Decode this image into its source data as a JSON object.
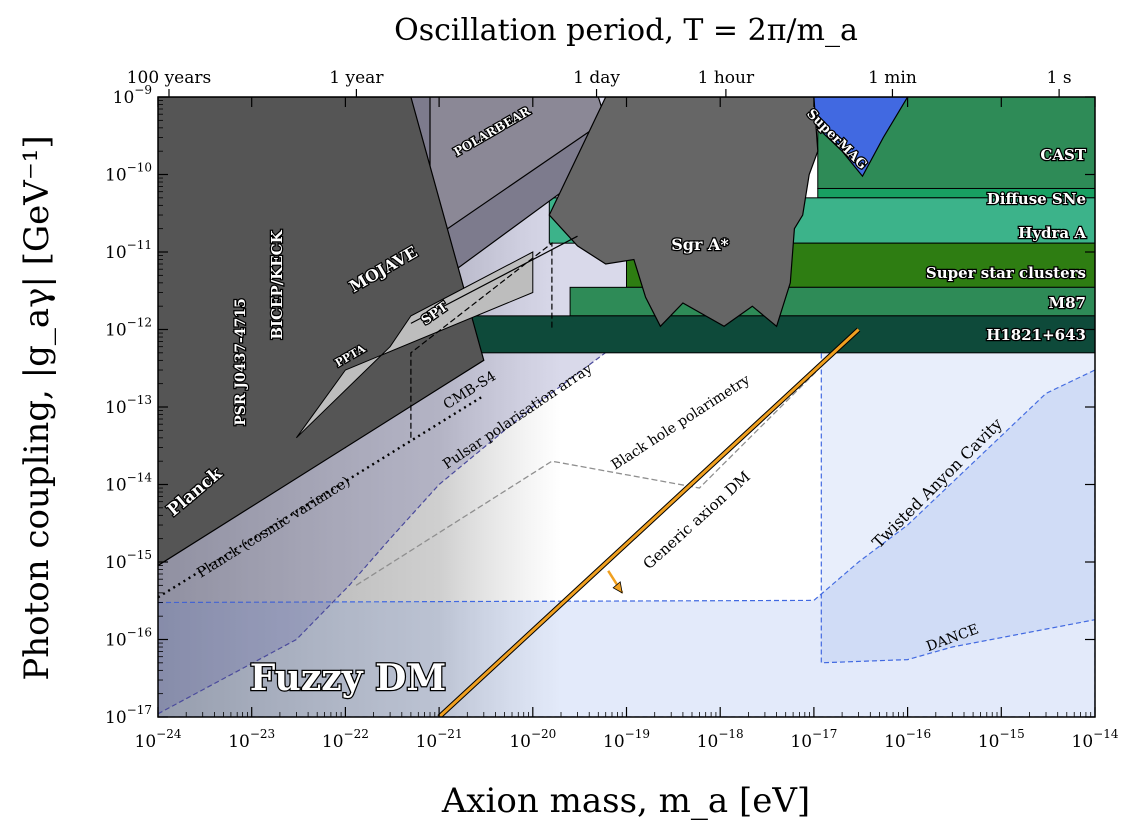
{
  "chart_data": {
    "type": "area",
    "xlabel": "Axion mass, m_a [eV]",
    "ylabel": "Photon coupling, |g_aγ| [GeV⁻¹]",
    "top_axis_title": "Oscillation period, T = 2π/m_a",
    "xscale": "log",
    "yscale": "log",
    "xlim": [
      1e-24,
      1e-14
    ],
    "ylim": [
      1e-17,
      1e-09
    ],
    "x_ticks": [
      {
        "base": "10",
        "exp": "−24",
        "value": 1e-24
      },
      {
        "base": "10",
        "exp": "−23",
        "value": 1e-23
      },
      {
        "base": "10",
        "exp": "−22",
        "value": 1e-22
      },
      {
        "base": "10",
        "exp": "−21",
        "value": 1e-21
      },
      {
        "base": "10",
        "exp": "−20",
        "value": 1e-20
      },
      {
        "base": "10",
        "exp": "−19",
        "value": 1e-19
      },
      {
        "base": "10",
        "exp": "−18",
        "value": 1e-18
      },
      {
        "base": "10",
        "exp": "−17",
        "value": 1e-17
      },
      {
        "base": "10",
        "exp": "−16",
        "value": 1e-16
      },
      {
        "base": "10",
        "exp": "−15",
        "value": 1e-15
      },
      {
        "base": "10",
        "exp": "−14",
        "value": 1e-14
      }
    ],
    "y_ticks": [
      {
        "base": "10",
        "exp": "−9",
        "value": 1e-09
      },
      {
        "base": "10",
        "exp": "−10",
        "value": 1e-10
      },
      {
        "base": "10",
        "exp": "−11",
        "value": 1e-11
      },
      {
        "base": "10",
        "exp": "−12",
        "value": 1e-12
      },
      {
        "base": "10",
        "exp": "−13",
        "value": 1e-13
      },
      {
        "base": "10",
        "exp": "−14",
        "value": 1e-14
      },
      {
        "base": "10",
        "exp": "−15",
        "value": 1e-15
      },
      {
        "base": "10",
        "exp": "−16",
        "value": 1e-16
      },
      {
        "base": "10",
        "exp": "−17",
        "value": 1e-17
      }
    ],
    "top_ticks": [
      {
        "label": "100 years",
        "mass_eV": 1.31e-24
      },
      {
        "label": "1 year",
        "mass_eV": 1.31e-22
      },
      {
        "label": "1 day",
        "mass_eV": 4.79e-20
      },
      {
        "label": "1 hour",
        "mass_eV": 1.15e-18
      },
      {
        "label": "1 min",
        "mass_eV": 6.89e-17
      },
      {
        "label": "1 s",
        "mass_eV": 4.14e-15
      }
    ],
    "constraints": [
      {
        "label": "CAST",
        "type": "band",
        "x": [
          1.1e-17,
          1e-14
        ],
        "y": [
          6.6e-11,
          1e-09
        ],
        "color": "#2e8b57"
      },
      {
        "label": "Diffuse SNe",
        "type": "band",
        "x": [
          1.1e-17,
          1e-14
        ],
        "y": [
          5e-11,
          6.6e-11
        ],
        "color": "#18a062"
      },
      {
        "label": "Hydra A",
        "type": "band",
        "x": [
          1.5e-20,
          1e-14
        ],
        "y": [
          1.3e-11,
          5e-11
        ],
        "color": "#3cb38a"
      },
      {
        "label": "Super star clusters",
        "type": "band",
        "x": [
          1e-19,
          1e-14
        ],
        "y": [
          3.5e-12,
          1.3e-11
        ],
        "color": "#2e7d12"
      },
      {
        "label": "M87",
        "type": "band",
        "x": [
          2.5e-20,
          1e-14
        ],
        "y": [
          1.5e-12,
          3.5e-12
        ],
        "color": "#2e8b57"
      },
      {
        "label": "H1821+643",
        "type": "band",
        "x": [
          5e-22,
          1e-14
        ],
        "y": [
          5e-13,
          1.5e-12
        ],
        "color": "#0e4a3a"
      },
      {
        "label": "SuperMAG",
        "type": "region",
        "color": "#4169e1",
        "points": [
          [
            3.5e-18,
            1e-09
          ],
          [
            9e-18,
            5e-10
          ],
          [
            2e-17,
            2e-10
          ],
          [
            3.3e-17,
            9.5e-11
          ],
          [
            5.5e-17,
            3e-10
          ],
          [
            1e-16,
            1e-09
          ]
        ]
      },
      {
        "label": "Sgr A*",
        "type": "region",
        "color": "#666666",
        "points": [
          [
            6e-20,
            1e-09
          ],
          [
            1.5e-20,
            3e-11
          ],
          [
            3e-20,
            1.2e-11
          ],
          [
            6e-20,
            7e-12
          ],
          [
            1.2e-19,
            8e-12
          ],
          [
            1.6e-19,
            2.6e-12
          ],
          [
            2.3e-19,
            1.1e-12
          ],
          [
            4e-19,
            2.2e-12
          ],
          [
            1.1e-18,
            1.1e-12
          ],
          [
            2.2e-18,
            2e-12
          ],
          [
            4e-18,
            1.1e-12
          ],
          [
            5.6e-18,
            4e-12
          ],
          [
            6.2e-18,
            2e-11
          ],
          [
            7.6e-18,
            3e-11
          ],
          [
            8.9e-18,
            1e-10
          ],
          [
            1.1e-17,
            2e-10
          ],
          [
            1e-17,
            1e-09
          ]
        ]
      },
      {
        "label": "Planck",
        "type": "region",
        "color": "#555555",
        "points": [
          [
            1e-24,
            1e-09
          ],
          [
            1e-24,
            9e-16
          ],
          [
            3e-21,
            4e-13
          ],
          [
            5e-22,
            1e-09
          ]
        ]
      },
      {
        "label": "PSR J0437-4715",
        "type": "region",
        "color": "#a0a0a0",
        "points": [
          [
            5.5e-24,
            1e-09
          ],
          [
            5.5e-24,
            1.5e-14
          ],
          [
            1e-22,
            3e-14
          ],
          [
            1e-22,
            1e-09
          ]
        ]
      },
      {
        "label": "BICEP/KECK",
        "type": "region",
        "color": "#676782",
        "points": [
          [
            1.2e-23,
            1e-09
          ],
          [
            1.2e-23,
            2.2e-12
          ],
          [
            2.7e-23,
            2.2e-12
          ],
          [
            2.7e-23,
            3e-14
          ],
          [
            4.5e-23,
            1e-13
          ],
          [
            2e-22,
            8e-13
          ],
          [
            1e-22,
            1e-09
          ]
        ]
      },
      {
        "label": "MOJAVE",
        "type": "region",
        "color": "#7d7b8d",
        "points": [
          [
            3.5e-23,
            1e-09
          ],
          [
            3.5e-23,
            1e-12
          ],
          [
            7e-22,
            3e-12
          ],
          [
            8e-20,
            2e-10
          ],
          [
            1e-20,
            1e-09
          ]
        ]
      },
      {
        "label": "POLARBEAR",
        "type": "region",
        "color": "#8b8896",
        "points": [
          [
            8e-22,
            1e-09
          ],
          [
            8e-22,
            1.4e-11
          ],
          [
            6e-20,
            5e-10
          ],
          [
            5e-20,
            1e-09
          ]
        ]
      },
      {
        "label": "PPTA",
        "type": "region",
        "color": "#bdbdbd",
        "points": [
          [
            3e-23,
            4e-14
          ],
          [
            3e-22,
            6e-13
          ],
          [
            5e-22,
            1.5e-12
          ],
          [
            1.5e-21,
            3e-12
          ],
          [
            1e-20,
            1e-11
          ]
        ]
      },
      {
        "label": "SPT",
        "type": "region",
        "color": "#7a7885",
        "points": [
          [
            5e-22,
            1.2e-12
          ],
          [
            3e-20,
            1.6e-11
          ]
        ]
      },
      {
        "label": "Fuzzy DM",
        "type": "region",
        "color": "#7d7d7d",
        "x": [
          1e-24,
          2e-20
        ],
        "y": [
          1e-17,
          1e-09
        ]
      }
    ],
    "projections": [
      {
        "label": "Planck (cosmic variance)",
        "style": "dotted",
        "color": "#000000",
        "points": [
          [
            1e-24,
            3.5e-16
          ],
          [
            3e-21,
            1.4e-13
          ]
        ]
      },
      {
        "label": "CMB-S4",
        "style": "dashed",
        "color": "#000000",
        "points": [
          [
            5e-22,
            4e-14
          ],
          [
            5e-22,
            5e-13
          ],
          [
            1.6e-20,
            1.3e-11
          ],
          [
            1.6e-20,
            1e-12
          ]
        ]
      },
      {
        "label": "Pulsar polarisation array",
        "style": "dashed",
        "color": "#4a4a9c",
        "points": [
          [
            1e-24,
            1.1e-17
          ],
          [
            3e-23,
            1e-16
          ],
          [
            1.1e-22,
            5e-16
          ],
          [
            3e-22,
            2e-15
          ],
          [
            1e-21,
            1e-14
          ],
          [
            1e-20,
            1e-13
          ],
          [
            1e-19,
            8e-13
          ],
          [
            3e-19,
            1e-12
          ]
        ]
      },
      {
        "label": "Black hole polarimetry",
        "style": "dashed",
        "color": "#8f8f8f",
        "points": [
          [
            1.3e-22,
            5e-16
          ],
          [
            1.6e-20,
            2e-14
          ],
          [
            6e-19,
            9e-15
          ],
          [
            1.1e-17,
            3e-13
          ]
        ]
      },
      {
        "label": "Twisted Anyon Cavity",
        "style": "dashed",
        "color": "#4169e1",
        "points": [
          [
            1e-24,
            3e-16
          ],
          [
            1e-17,
            3.2e-16
          ],
          [
            3e-17,
            1e-15
          ],
          [
            1e-16,
            3e-15
          ],
          [
            3e-15,
            1.5e-13
          ],
          [
            1e-14,
            3e-13
          ],
          [
            1e-14,
            1e-17
          ],
          [
            1e-24,
            1e-17
          ]
        ]
      },
      {
        "label": "DANCE",
        "style": "dashed",
        "color": "#4169e1",
        "points": [
          [
            1.2e-17,
            1e-12
          ],
          [
            1.2e-17,
            5e-17
          ],
          [
            1e-16,
            5.5e-17
          ],
          [
            3e-16,
            8e-17
          ],
          [
            1e-14,
            1.8e-16
          ]
        ]
      }
    ],
    "theory_lines": [
      {
        "label": "Generic axion DM",
        "color": "#f0a020",
        "points": [
          [
            1e-21,
            1e-17
          ],
          [
            3e-17,
            1e-12
          ]
        ],
        "arrow": "down"
      }
    ]
  }
}
